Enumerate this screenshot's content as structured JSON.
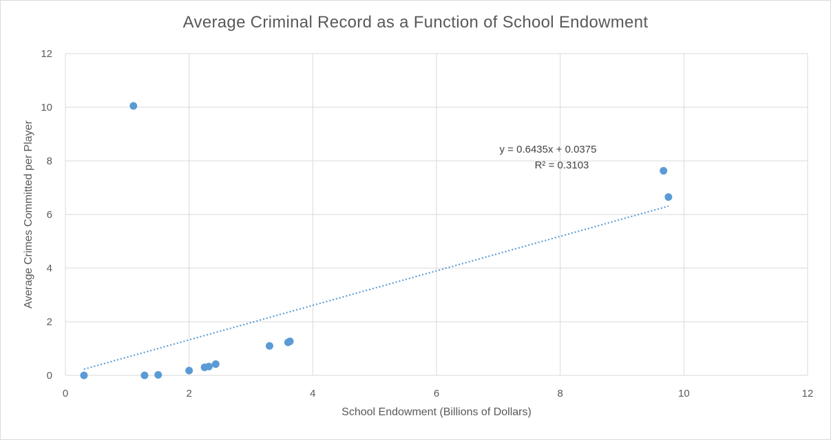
{
  "chart_data": {
    "type": "scatter",
    "title": "Average Criminal Record as a Function of School Endowment",
    "xlabel": "School Endowment (Billions of Dollars)",
    "ylabel": "Average Crimes Committed per Player",
    "xlim": [
      0,
      12
    ],
    "ylim": [
      0,
      12
    ],
    "xticks": [
      0,
      2,
      4,
      6,
      8,
      10,
      12
    ],
    "yticks": [
      0,
      2,
      4,
      6,
      8,
      10,
      12
    ],
    "grid": true,
    "legend": "none",
    "series": [
      {
        "color": "#5b9bd5",
        "points": [
          {
            "x": 0.3,
            "y": 0.0
          },
          {
            "x": 1.1,
            "y": 10.05
          },
          {
            "x": 1.28,
            "y": 0.0
          },
          {
            "x": 1.5,
            "y": 0.02
          },
          {
            "x": 2.0,
            "y": 0.18
          },
          {
            "x": 2.25,
            "y": 0.3
          },
          {
            "x": 2.32,
            "y": 0.33
          },
          {
            "x": 2.43,
            "y": 0.42
          },
          {
            "x": 3.3,
            "y": 1.1
          },
          {
            "x": 3.6,
            "y": 1.23
          },
          {
            "x": 3.63,
            "y": 1.27
          },
          {
            "x": 9.67,
            "y": 7.63
          },
          {
            "x": 9.75,
            "y": 6.65
          }
        ]
      }
    ],
    "trendline": {
      "type": "linear",
      "style": "dotted",
      "color": "#5b9bd5",
      "slope": 0.6435,
      "intercept": 0.0375,
      "x_range": [
        0.3,
        9.75
      ],
      "equation_label": "y = 0.6435x + 0.0375",
      "r2_label": "R² = 0.3103"
    }
  }
}
